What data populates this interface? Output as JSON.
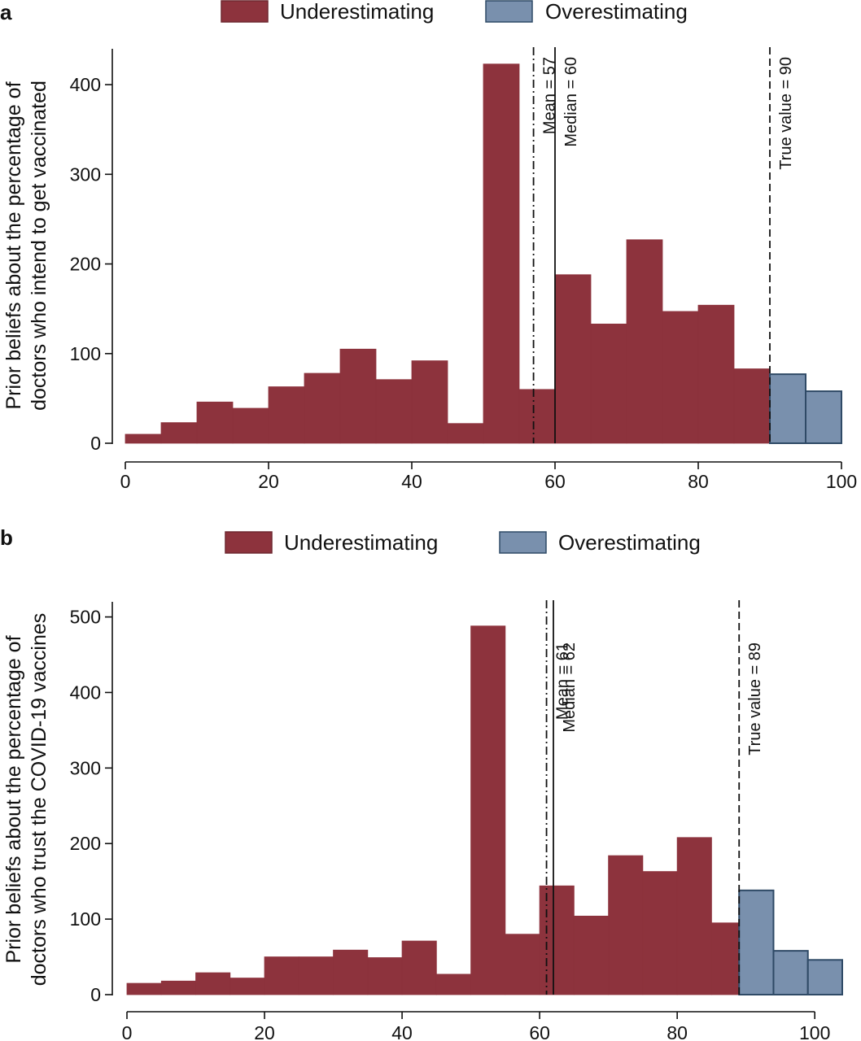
{
  "colors": {
    "under": "#8d333d",
    "over": "#7990ad",
    "over_stroke": "#2f4a66",
    "under_stroke": "#6e2830"
  },
  "legend": {
    "under_label": "Underestimating",
    "over_label": "Overestimating"
  },
  "chart_data": [
    {
      "panel": "a",
      "type": "bar",
      "ylabel_line1": "Prior beliefs about the percentage of",
      "ylabel_line2": "doctors who intend to get vaccinated",
      "xlim": [
        0,
        100
      ],
      "ylim": [
        0,
        440
      ],
      "xticks": [
        0,
        20,
        40,
        60,
        80,
        100
      ],
      "yticks": [
        0,
        100,
        200,
        300,
        400
      ],
      "bin_width": 5,
      "bins": [
        {
          "x": 0,
          "y": 10,
          "group": "under"
        },
        {
          "x": 5,
          "y": 23,
          "group": "under"
        },
        {
          "x": 10,
          "y": 46,
          "group": "under"
        },
        {
          "x": 15,
          "y": 39,
          "group": "under"
        },
        {
          "x": 20,
          "y": 63,
          "group": "under"
        },
        {
          "x": 25,
          "y": 78,
          "group": "under"
        },
        {
          "x": 30,
          "y": 105,
          "group": "under"
        },
        {
          "x": 35,
          "y": 71,
          "group": "under"
        },
        {
          "x": 40,
          "y": 92,
          "group": "under"
        },
        {
          "x": 45,
          "y": 22,
          "group": "under"
        },
        {
          "x": 50,
          "y": 423,
          "group": "under"
        },
        {
          "x": 55,
          "y": 60,
          "group": "under"
        },
        {
          "x": 60,
          "y": 188,
          "group": "under"
        },
        {
          "x": 65,
          "y": 133,
          "group": "under"
        },
        {
          "x": 70,
          "y": 227,
          "group": "under"
        },
        {
          "x": 75,
          "y": 147,
          "group": "under"
        },
        {
          "x": 80,
          "y": 154,
          "group": "under"
        },
        {
          "x": 85,
          "y": 83,
          "group": "under"
        },
        {
          "x": 90,
          "y": 77,
          "group": "over"
        },
        {
          "x": 95,
          "y": 58,
          "group": "over"
        }
      ],
      "reference_lines": [
        {
          "x": 57,
          "label": "Mean = 57",
          "style": "dashdot"
        },
        {
          "x": 60,
          "label": "Median = 60",
          "style": "solid"
        },
        {
          "x": 90,
          "label": "True value = 90",
          "style": "dashed"
        }
      ]
    },
    {
      "panel": "b",
      "type": "bar",
      "ylabel_line1": "Prior beliefs about the percentage of",
      "ylabel_line2": "doctors who trust the COVID-19 vaccines",
      "xlim": [
        0,
        104
      ],
      "ylim": [
        0,
        520
      ],
      "xticks": [
        0,
        20,
        40,
        60,
        80,
        100
      ],
      "yticks": [
        0,
        100,
        200,
        300,
        400,
        500
      ],
      "bin_width": 5,
      "bins": [
        {
          "x": 0,
          "y": 15,
          "group": "under"
        },
        {
          "x": 5,
          "y": 18,
          "group": "under"
        },
        {
          "x": 10,
          "y": 29,
          "group": "under"
        },
        {
          "x": 15,
          "y": 22,
          "group": "under"
        },
        {
          "x": 20,
          "y": 50,
          "group": "under"
        },
        {
          "x": 25,
          "y": 50,
          "group": "under"
        },
        {
          "x": 30,
          "y": 59,
          "group": "under"
        },
        {
          "x": 35,
          "y": 49,
          "group": "under"
        },
        {
          "x": 40,
          "y": 71,
          "group": "under"
        },
        {
          "x": 45,
          "y": 27,
          "group": "under"
        },
        {
          "x": 50,
          "y": 488,
          "group": "under"
        },
        {
          "x": 55,
          "y": 80,
          "group": "under"
        },
        {
          "x": 60,
          "y": 144,
          "group": "under"
        },
        {
          "x": 65,
          "y": 104,
          "group": "under"
        },
        {
          "x": 70,
          "y": 184,
          "group": "under"
        },
        {
          "x": 75,
          "y": 163,
          "group": "under"
        },
        {
          "x": 80,
          "y": 208,
          "group": "under"
        },
        {
          "x": 85,
          "y": 95,
          "group": "under"
        },
        {
          "x": 89,
          "y": 138,
          "group": "over"
        },
        {
          "x": 94,
          "y": 58,
          "group": "over"
        },
        {
          "x": 99,
          "y": 46,
          "group": "over"
        }
      ],
      "reference_lines": [
        {
          "x": 61,
          "label": "Mean = 61",
          "style": "dashdot"
        },
        {
          "x": 62,
          "label": "Median = 62",
          "style": "solid"
        },
        {
          "x": 89,
          "label": "True value = 89",
          "style": "dashed"
        }
      ]
    }
  ]
}
